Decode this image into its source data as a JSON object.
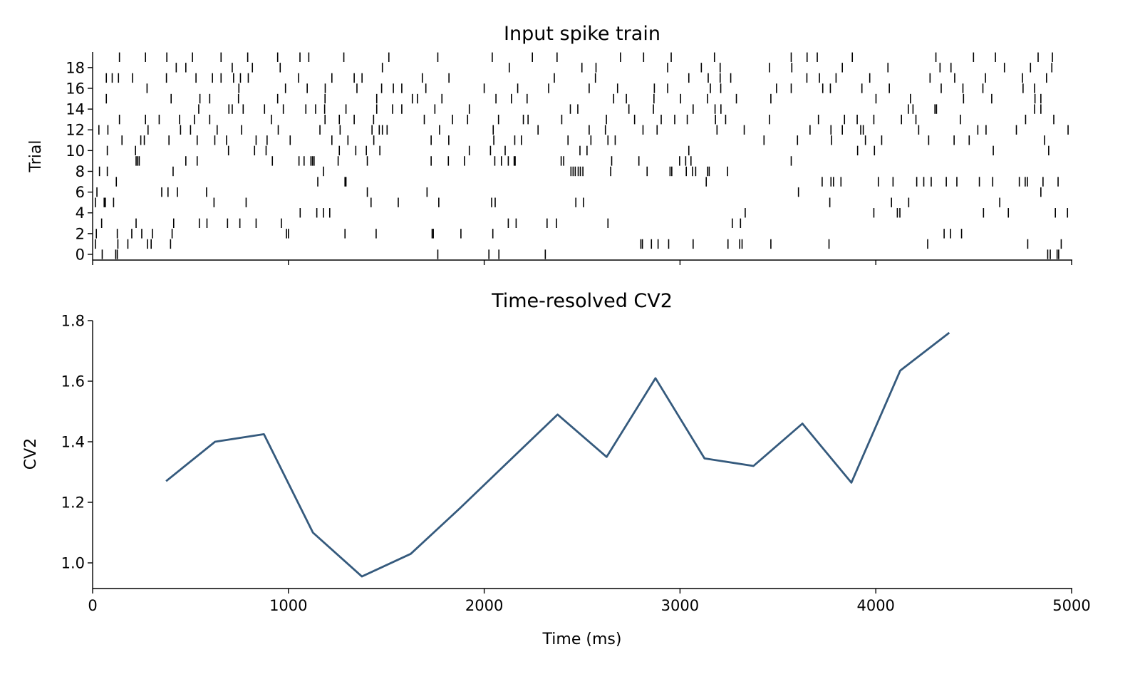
{
  "chart_data": [
    {
      "type": "raster",
      "title": "Input spike train",
      "xlabel": "",
      "ylabel": "Trial",
      "xlim": [
        0,
        5000
      ],
      "ylim": [
        -0.55,
        19.5
      ],
      "xticks": [
        0,
        1000,
        2000,
        3000,
        4000,
        5000
      ],
      "yticks": [
        0,
        2,
        4,
        6,
        8,
        10,
        12,
        14,
        16,
        18
      ],
      "ytick_labels": [
        "0",
        "2",
        "4",
        "6",
        "8",
        "10",
        "12",
        "14",
        "16",
        "18"
      ],
      "color": "#000000",
      "trials": [
        [
          49,
          118,
          126,
          1763,
          2024,
          2075,
          2312,
          4878,
          4891,
          4926,
          4934
        ],
        [
          14,
          129,
          180,
          280,
          299,
          398,
          2800,
          2808,
          2854,
          2888,
          2942,
          3067,
          3245,
          3305,
          3317,
          3464,
          3761,
          4265,
          4776,
          4947
        ],
        [
          19,
          126,
          200,
          251,
          305,
          406,
          990,
          1000,
          1289,
          1448,
          1734,
          1740,
          1881,
          2044,
          4349,
          4382,
          4438
        ],
        [
          46,
          222,
          414,
          545,
          584,
          689,
          752,
          835,
          964,
          2123,
          2163,
          2321,
          2369,
          2632,
          3267,
          3309
        ],
        [
          1060,
          1145,
          1179,
          1211,
          3333,
          3990,
          4110,
          4123,
          4550,
          4677,
          4917,
          4979
        ],
        [
          14,
          59,
          65,
          107,
          620,
          784,
          1422,
          1561,
          1768,
          2038,
          2056,
          2468,
          2507,
          3765,
          4080,
          4168,
          4633
        ],
        [
          22,
          353,
          385,
          433,
          582,
          1403,
          1708,
          3605,
          4843
        ],
        [
          121,
          1150,
          1289,
          1294,
          3134,
          3726,
          3771,
          3784,
          3822,
          4013,
          4088,
          4209,
          4245,
          4283,
          4360,
          4414,
          4529,
          4597,
          4733,
          4763,
          4774,
          4854,
          4931
        ],
        [
          35,
          75,
          411,
          1179,
          2443,
          2454,
          2465,
          2480,
          2491,
          2504,
          2646,
          2832,
          2949,
          2958,
          3032,
          3064,
          3080,
          3141,
          3149,
          3243
        ],
        [
          222,
          230,
          238,
          476,
          534,
          918,
          1054,
          1080,
          1115,
          1123,
          1131,
          1254,
          1403,
          1729,
          1817,
          1899,
          2054,
          2088,
          2123,
          2153,
          2158,
          2393,
          2406,
          2651,
          2790,
          2998,
          3029,
          3056,
          3568
        ],
        [
          75,
          219,
          694,
          827,
          886,
          1260,
          1344,
          1398,
          1467,
          1924,
          2032,
          2107,
          2489,
          2525,
          3045,
          3907,
          3993,
          4600,
          4883
        ],
        [
          150,
          246,
          264,
          390,
          534,
          624,
          684,
          835,
          891,
          1009,
          1222,
          1304,
          1436,
          1729,
          1819,
          2049,
          2156,
          2190,
          2428,
          2545,
          2632,
          2669,
          3429,
          3600,
          3774,
          3947,
          4030,
          4270,
          4400,
          4477,
          4862
        ],
        [
          32,
          78,
          283,
          449,
          500,
          636,
          761,
          948,
          1161,
          1264,
          1427,
          1464,
          1480,
          1504,
          1772,
          2046,
          2275,
          2536,
          2619,
          2811,
          2883,
          3189,
          3328,
          3664,
          3771,
          3829,
          3923,
          3936,
          4219,
          4521,
          4563,
          4718,
          4982
        ],
        [
          137,
          270,
          340,
          444,
          520,
          598,
          913,
          1187,
          1260,
          1336,
          1435,
          1694,
          1838,
          1915,
          2073,
          2200,
          2224,
          2396,
          2624,
          2768,
          2904,
          2973,
          3037,
          3181,
          3233,
          3457,
          3707,
          3840,
          3905,
          3990,
          4131,
          4205,
          4432,
          4765,
          4909
        ],
        [
          542,
          696,
          713,
          769,
          878,
          974,
          1089,
          1139,
          1185,
          1294,
          1451,
          1532,
          1579,
          1748,
          1924,
          2440,
          2478,
          2739,
          2864,
          3067,
          3179,
          3209,
          4166,
          4190,
          4302,
          4310,
          4811,
          4843
        ],
        [
          70,
          401,
          548,
          598,
          745,
          945,
          1187,
          1451,
          1633,
          1659,
          1784,
          2060,
          2139,
          2219,
          2661,
          2726,
          2867,
          3003,
          3141,
          3288,
          3464,
          4001,
          4177,
          4448,
          4592,
          4813,
          4843
        ],
        [
          278,
          747,
          985,
          1096,
          1188,
          1350,
          1476,
          1536,
          1579,
          1702,
          2000,
          2171,
          2329,
          2536,
          2681,
          2869,
          2937,
          3155,
          3208,
          3493,
          3568,
          3729,
          3768,
          3929,
          4069,
          4334,
          4445,
          4547,
          4752,
          4811
        ],
        [
          70,
          100,
          132,
          204,
          377,
          528,
          612,
          656,
          720,
          755,
          795,
          1052,
          1222,
          1336,
          1376,
          1684,
          1820,
          2358,
          2568,
          3045,
          3144,
          3205,
          3259,
          3648,
          3712,
          3797,
          3969,
          4277,
          4403,
          4560,
          4749,
          4872
        ],
        [
          427,
          476,
          713,
          816,
          958,
          1480,
          2128,
          2499,
          2571,
          2937,
          3109,
          3205,
          3457,
          3571,
          3829,
          4062,
          4328,
          4384,
          4657,
          4790,
          4899
        ],
        [
          137,
          270,
          379,
          510,
          656,
          792,
          945,
          1059,
          1104,
          1283,
          1513,
          1763,
          2041,
          2246,
          2372,
          2696,
          2814,
          2955,
          3176,
          3568,
          3649,
          3701,
          3880,
          4307,
          4499,
          4611,
          4829,
          4902
        ]
      ]
    },
    {
      "type": "line",
      "title": "Time-resolved CV2",
      "xlabel": "Time (ms)",
      "ylabel": "CV2",
      "xlim": [
        0,
        5000
      ],
      "ylim": [
        0.915,
        1.8
      ],
      "xticks": [
        0,
        1000,
        2000,
        3000,
        4000,
        5000
      ],
      "xtick_labels": [
        "0",
        "1000",
        "2000",
        "3000",
        "4000",
        "5000"
      ],
      "yticks": [
        1.0,
        1.2,
        1.4,
        1.6,
        1.8
      ],
      "ytick_labels": [
        "1.0",
        "1.2",
        "1.4",
        "1.6",
        "1.8"
      ],
      "color": "#355a7d",
      "x": [
        375,
        625,
        875,
        1125,
        1375,
        1625,
        1875,
        2125,
        2375,
        2625,
        2875,
        3125,
        3375,
        3625,
        3875,
        4125,
        4375
      ],
      "y": [
        1.27,
        1.4,
        1.425,
        1.1,
        0.955,
        1.03,
        1.18,
        1.335,
        1.49,
        1.35,
        1.61,
        1.345,
        1.32,
        1.46,
        1.265,
        1.635,
        1.76
      ]
    }
  ]
}
